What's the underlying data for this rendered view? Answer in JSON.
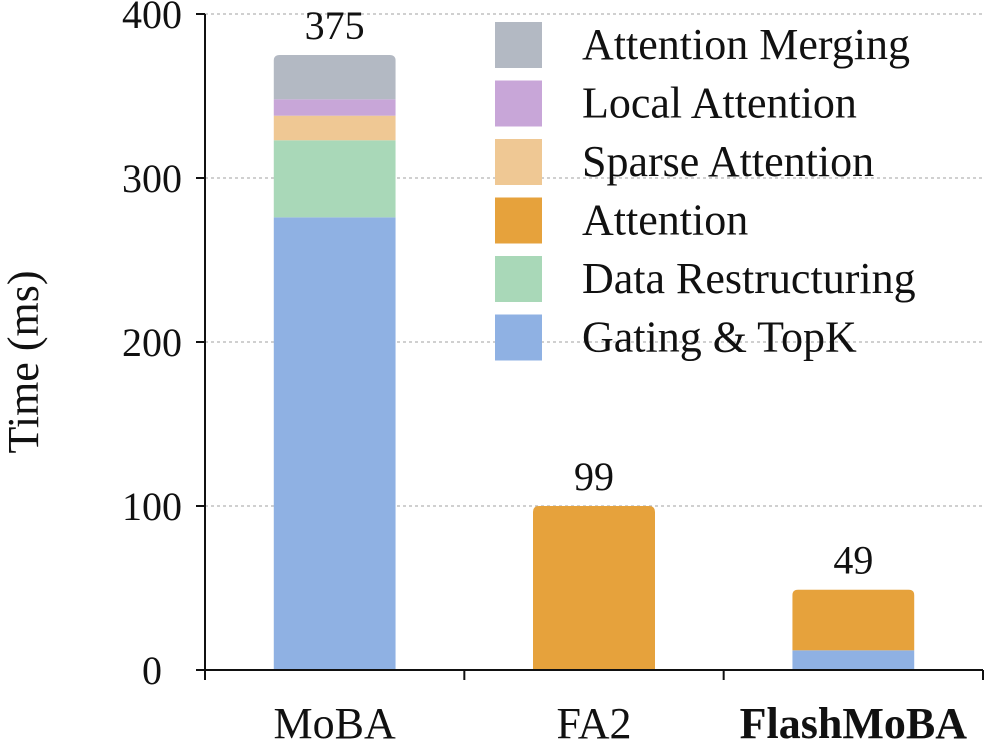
{
  "chart_data": {
    "type": "bar",
    "stacked": true,
    "title": "",
    "xlabel": "",
    "ylabel": "Time (ms)",
    "ylim": [
      0,
      400
    ],
    "yticks": [
      0,
      100,
      200,
      300,
      400
    ],
    "grid": true,
    "legend_position": "top-right",
    "categories": [
      "MoBA",
      "FA2",
      "FlashMoBA"
    ],
    "category_bold": [
      false,
      false,
      true
    ],
    "totals": [
      "375",
      "99",
      "49"
    ],
    "series": [
      {
        "name": "Gating & TopK",
        "color": "#8fb1e3",
        "values": [
          276,
          0,
          12
        ]
      },
      {
        "name": "Data Restructuring",
        "color": "#a9d8b8",
        "values": [
          47,
          0,
          0
        ]
      },
      {
        "name": "Attention",
        "color": "#e6a23c",
        "values": [
          0,
          100,
          37
        ]
      },
      {
        "name": "Sparse Attention",
        "color": "#efc894",
        "values": [
          15,
          0,
          0
        ]
      },
      {
        "name": "Local Attention",
        "color": "#c8a6d8",
        "values": [
          10,
          0,
          0
        ]
      },
      {
        "name": "Attention Merging",
        "color": "#b3b9c3",
        "values": [
          27,
          0,
          0
        ]
      }
    ],
    "legend_order": [
      "Attention Merging",
      "Local Attention",
      "Sparse Attention",
      "Attention",
      "Data Restructuring",
      "Gating & TopK"
    ]
  }
}
